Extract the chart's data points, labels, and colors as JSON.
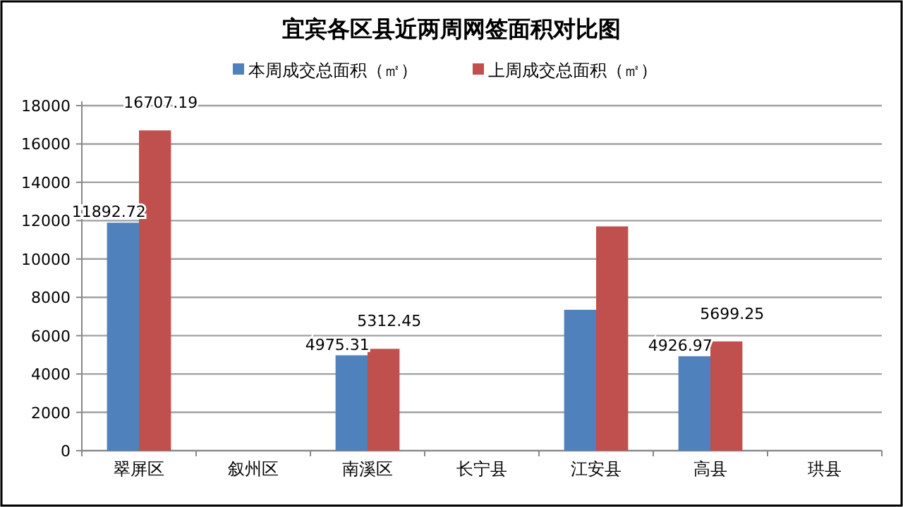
{
  "chart_data": {
    "type": "bar",
    "title": "宜宾各区县近两周网签面积对比图",
    "categories": [
      "翠屏区",
      "叙州区",
      "南溪区",
      "长宁县",
      "江安县",
      "高县",
      "珙县"
    ],
    "series": [
      {
        "name": "本周成交总面积（㎡）",
        "color": "#4f81bd",
        "values": [
          11892.72,
          null,
          4975.31,
          null,
          7350,
          4926.97,
          null
        ],
        "value_labels": [
          "11892.72",
          null,
          "4975.31",
          null,
          null,
          "4926.97",
          null
        ]
      },
      {
        "name": "上周成交总面积（㎡）",
        "color": "#c0504d",
        "values": [
          16707.19,
          null,
          5312.45,
          null,
          11700,
          5699.25,
          null
        ],
        "value_labels": [
          "16707.19",
          null,
          "5312.45",
          null,
          null,
          "5699.25",
          null
        ]
      }
    ],
    "ylim": [
      0,
      18000
    ],
    "yticks": [
      0,
      2000,
      4000,
      6000,
      8000,
      10000,
      12000,
      14000,
      16000,
      18000
    ],
    "grid": "y",
    "legend": "top"
  }
}
